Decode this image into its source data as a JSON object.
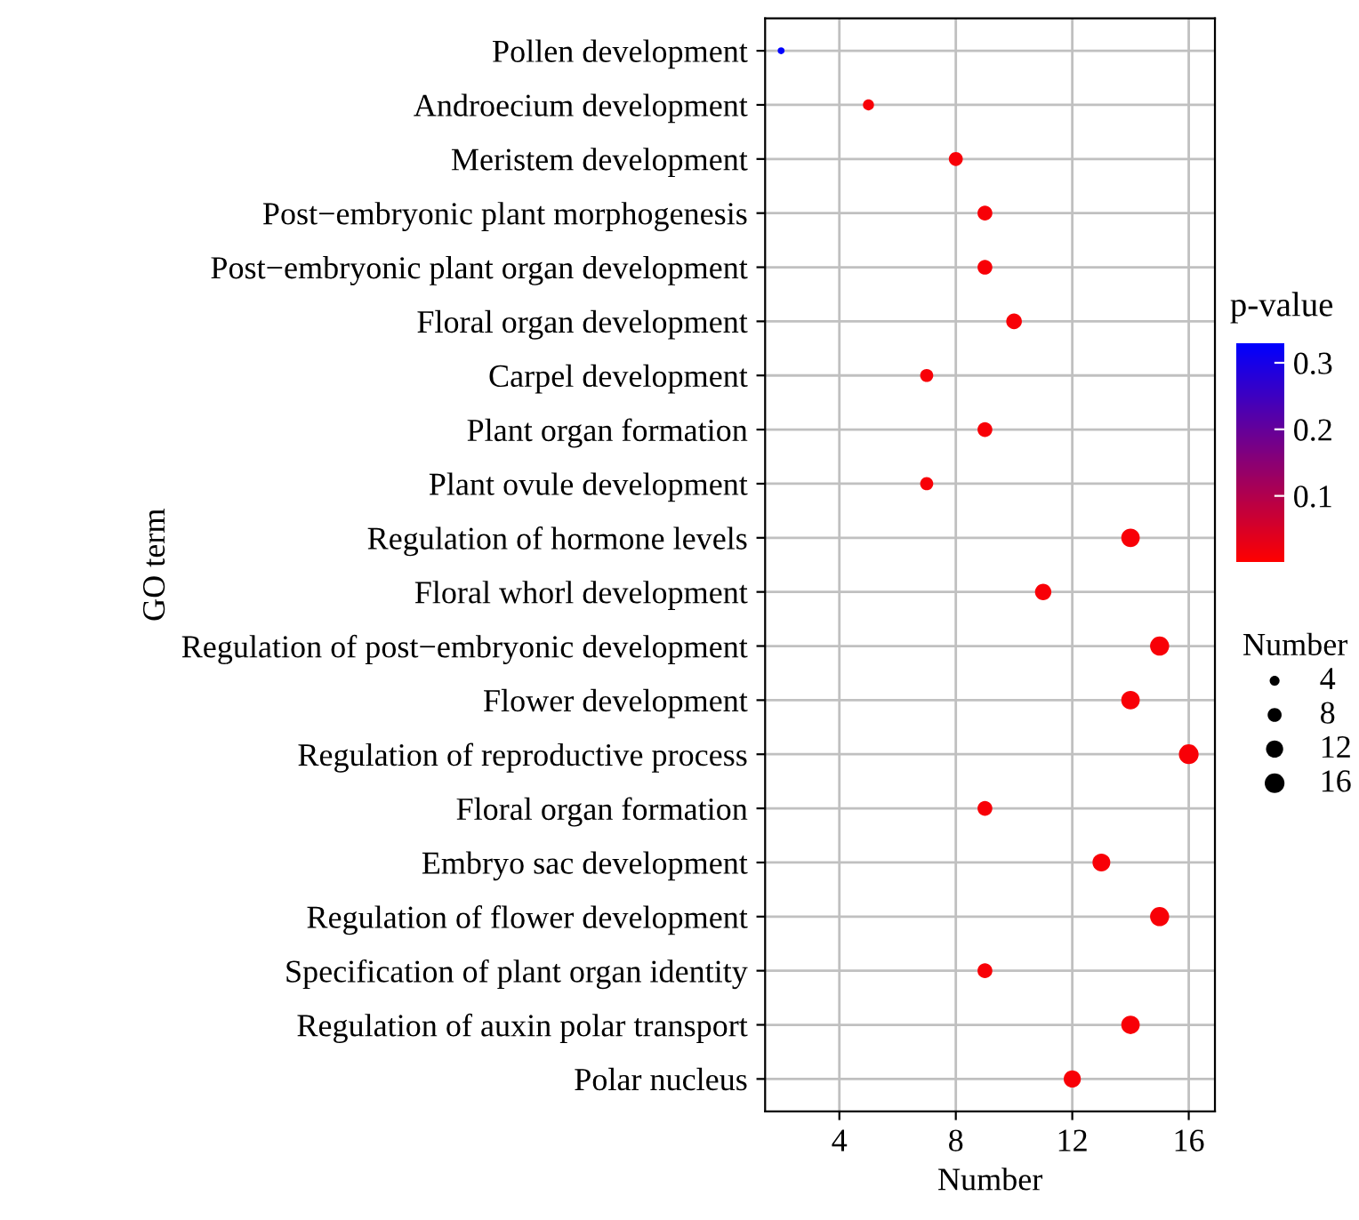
{
  "chart_data": {
    "type": "bubble",
    "xlabel": "Number",
    "ylabel": "GO term",
    "clabel": "p-value",
    "legend_title": "Number",
    "categories": [
      "Pollen development",
      "Androecium development",
      "Meristem development",
      "Post−embryonic plant morphogenesis",
      "Post−embryonic plant organ development",
      "Floral organ development",
      "Carpel development",
      "Plant organ formation",
      "Plant ovule development",
      "Regulation of hormone levels",
      "Floral whorl development",
      "Regulation of post−embryonic development",
      "Flower development",
      "Regulation of reproductive process",
      "Floral organ formation",
      "Embryo sac development",
      "Regulation of flower development",
      "Specification of plant organ identity",
      "Regulation of auxin polar transport",
      "Polar nucleus"
    ],
    "values": [
      2,
      5,
      8,
      9,
      9,
      10,
      7,
      9,
      7,
      14,
      11,
      15,
      14,
      16,
      9,
      13,
      15,
      9,
      14,
      12
    ],
    "sizes": [
      2,
      5,
      8,
      9,
      9,
      10,
      7,
      9,
      7,
      14,
      11,
      15,
      14,
      16,
      9,
      13,
      15,
      9,
      14,
      12
    ],
    "size_legend": [
      4,
      8,
      12,
      16
    ],
    "cvalues": [
      0.33,
      0.01,
      0.01,
      0.01,
      0.01,
      0.01,
      0.01,
      0.01,
      0.01,
      0.01,
      0.01,
      0.01,
      0.01,
      0.01,
      0.01,
      0.01,
      0.01,
      0.01,
      0.01,
      0.01
    ],
    "clim": [
      0,
      0.33
    ],
    "cticks": [
      0.1,
      0.2,
      0.3
    ],
    "xlim": [
      1.45,
      16.9
    ],
    "xticks": [
      4,
      8,
      12,
      16
    ],
    "orientation": "horizontal",
    "grid": true
  }
}
